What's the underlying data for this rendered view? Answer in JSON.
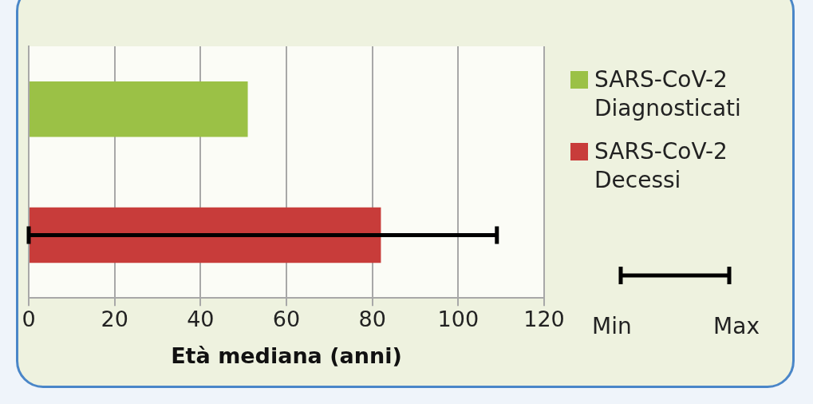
{
  "chart_data": {
    "type": "bar",
    "orientation": "horizontal",
    "xlabel": "Età mediana (anni)",
    "categories": [
      null,
      null
    ],
    "series": [
      {
        "name": "SARS-CoV-2 Diagnosticati",
        "color": "#9bc146",
        "values": [
          51,
          null
        ]
      },
      {
        "name": "SARS-CoV-2 Decessi",
        "color": "#c83c3a",
        "values": [
          null,
          82
        ],
        "errors": [
          null,
          [
            0,
            109
          ]
        ]
      }
    ],
    "xlim": [
      0,
      120
    ],
    "xticks": [
      0,
      20,
      40,
      60,
      80,
      100,
      120
    ],
    "grid": "x",
    "legend": "right",
    "annotations": [
      "Min",
      "Max"
    ]
  }
}
